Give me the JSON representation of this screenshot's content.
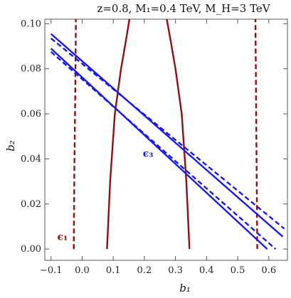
{
  "chart_data": {
    "type": "line",
    "title": "z=0.8, M₁=0.4 TeV, M_H=3 TeV",
    "xlabel": "b₁",
    "ylabel": "b₂",
    "xlim": [
      -0.12,
      0.66
    ],
    "ylim": [
      -0.005,
      0.102
    ],
    "x_ticks": [
      -0.1,
      0.0,
      0.1,
      0.2,
      0.3,
      0.4,
      0.5,
      0.6
    ],
    "x_tick_labels": [
      "−0.1",
      "0.0",
      "0.1",
      "0.2",
      "0.3",
      "0.4",
      "0.5",
      "0.6"
    ],
    "y_ticks": [
      0.0,
      0.02,
      0.04,
      0.06,
      0.08,
      0.1
    ],
    "y_tick_labels": [
      "0.00",
      "0.02",
      "0.04",
      "0.06",
      "0.08",
      "0.10"
    ],
    "grid": false,
    "colors": {
      "eps1": "#8b1010",
      "eps3": "#1a1ae6"
    },
    "annotations": [
      {
        "text": "ϵ₁",
        "x": -0.08,
        "y": 0.004,
        "color": "#8b1010"
      },
      {
        "text": "ϵ₃",
        "x": 0.195,
        "y": 0.041,
        "color": "#1a1ae6"
      }
    ],
    "series": [
      {
        "group": "eps1",
        "style": "solid",
        "x": [
          0.08,
          0.09,
          0.105,
          0.125,
          0.14,
          0.152
        ],
        "y": [
          0.0,
          0.03,
          0.06,
          0.08,
          0.092,
          0.102
        ]
      },
      {
        "group": "eps1",
        "style": "solid",
        "x": [
          0.345,
          0.335,
          0.32,
          0.3,
          0.285,
          0.272
        ],
        "y": [
          0.0,
          0.03,
          0.06,
          0.08,
          0.092,
          0.102
        ]
      },
      {
        "group": "eps1",
        "style": "dashed",
        "x": [
          -0.027,
          -0.025,
          -0.022,
          -0.02
        ],
        "y": [
          0.0,
          0.035,
          0.07,
          0.102
        ]
      },
      {
        "group": "eps1",
        "style": "dashed",
        "x": [
          0.563,
          0.561,
          0.559,
          0.557
        ],
        "y": [
          0.0,
          0.035,
          0.07,
          0.102
        ]
      },
      {
        "group": "eps3",
        "style": "solid",
        "x": [
          -0.1,
          0.645
        ],
        "y": [
          0.0955,
          0.0055
        ]
      },
      {
        "group": "eps3",
        "style": "solid",
        "x": [
          -0.1,
          0.595
        ],
        "y": [
          0.089,
          0.0
        ]
      },
      {
        "group": "eps3",
        "style": "dashed",
        "x": [
          -0.1,
          0.65
        ],
        "y": [
          0.0935,
          0.009
        ]
      },
      {
        "group": "eps3",
        "style": "dashed",
        "x": [
          -0.1,
          0.622
        ],
        "y": [
          0.0875,
          0.0
        ]
      }
    ]
  }
}
